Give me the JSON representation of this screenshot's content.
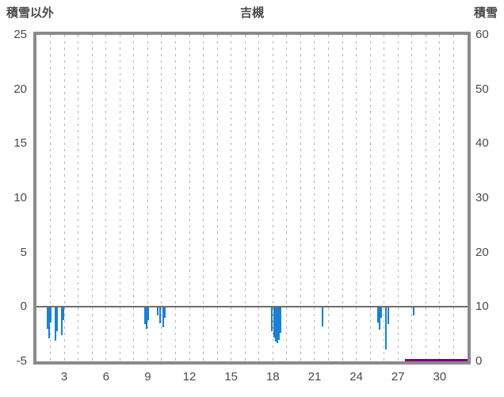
{
  "chart_data": {
    "type": "bar",
    "title": "吉槻",
    "left_axis": {
      "label": "積雪以外",
      "min": -5,
      "max": 25,
      "ticks": [
        25,
        20,
        15,
        10,
        5,
        0,
        -5
      ]
    },
    "right_axis": {
      "label": "積雪",
      "min": 0,
      "max": 60,
      "ticks": [
        60,
        50,
        40,
        30,
        20,
        10,
        0
      ]
    },
    "x_axis": {
      "min": 1,
      "max": 32,
      "tick_labels": [
        3,
        6,
        9,
        12,
        15,
        18,
        21,
        24,
        27,
        30
      ],
      "grid_interval_days": 1
    },
    "grid": "vertical-dashed",
    "legend": "none",
    "zero_line_value": 0,
    "series": [
      {
        "name": "積雪以外",
        "kind": "bar",
        "axis": "left",
        "color": "#1b7fd4",
        "points": [
          {
            "day": 1.8,
            "value": -2.0
          },
          {
            "day": 1.92,
            "value": -2.9
          },
          {
            "day": 2.05,
            "value": -1.4
          },
          {
            "day": 2.35,
            "value": -3.1
          },
          {
            "day": 2.5,
            "value": -2.2
          },
          {
            "day": 2.8,
            "value": -2.6
          },
          {
            "day": 2.95,
            "value": -1.2
          },
          {
            "day": 8.8,
            "value": -1.6
          },
          {
            "day": 8.92,
            "value": -2.0
          },
          {
            "day": 9.05,
            "value": -1.2
          },
          {
            "day": 9.7,
            "value": -0.8
          },
          {
            "day": 9.9,
            "value": -1.5
          },
          {
            "day": 10.1,
            "value": -1.9
          },
          {
            "day": 10.25,
            "value": -1.0
          },
          {
            "day": 17.95,
            "value": -2.2
          },
          {
            "day": 18.07,
            "value": -2.8
          },
          {
            "day": 18.19,
            "value": -3.2
          },
          {
            "day": 18.31,
            "value": -3.3
          },
          {
            "day": 18.43,
            "value": -3.0
          },
          {
            "day": 18.55,
            "value": -2.4
          },
          {
            "day": 21.55,
            "value": -1.8
          },
          {
            "day": 25.55,
            "value": -1.4
          },
          {
            "day": 25.67,
            "value": -2.1
          },
          {
            "day": 25.8,
            "value": -1.0
          },
          {
            "day": 26.15,
            "value": -3.9
          },
          {
            "day": 26.3,
            "value": -1.6
          },
          {
            "day": 28.15,
            "value": -0.8
          }
        ]
      },
      {
        "name": "積雪",
        "kind": "line",
        "axis": "right",
        "color": "#800080",
        "points": [
          {
            "day": 27.5,
            "value": 0
          },
          {
            "day": 32.0,
            "value": 0
          }
        ]
      }
    ]
  },
  "colors": {
    "bar": "#1b7fd4",
    "snow_line": "#800080",
    "plot_border": "#8a8a8a",
    "gridline": "#b5b5b5",
    "zero_line": "#6e6e6e",
    "text": "#4a4a4a",
    "background": "#ffffff"
  }
}
